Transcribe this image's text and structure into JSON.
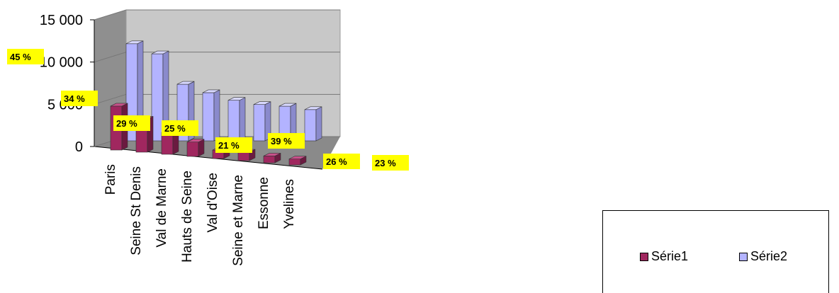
{
  "chart_data": {
    "type": "bar",
    "categories": [
      "Paris",
      "Seine St Denis",
      "Val de Marne",
      "Hauts de Seine",
      "Val d'Oise",
      "Seine et Marne",
      "Essonne",
      "Yvelines"
    ],
    "series": [
      {
        "name": "Série1",
        "values": [
          5200,
          3900,
          2600,
          1700,
          1000,
          1000,
          800,
          700
        ],
        "color": "#a0275f"
      },
      {
        "name": "Série2",
        "values": [
          11500,
          10300,
          6700,
          5700,
          4800,
          4300,
          4100,
          3700
        ],
        "color": "#b3b3ff"
      }
    ],
    "ylim": [
      0,
      15000
    ],
    "yticks": [
      {
        "value": 0,
        "label": "0"
      },
      {
        "value": 5000,
        "label": "5 000"
      },
      {
        "value": 10000,
        "label": "10 000"
      },
      {
        "value": 15000,
        "label": "15 000"
      }
    ],
    "data_labels": [
      "45 %",
      "34 %",
      "29 %",
      "25 %",
      "21 %",
      "39 %",
      "26 %",
      "23 %"
    ],
    "label_color": "#ffff00",
    "legend_position": "bottom-right",
    "grid": true,
    "three_d": true
  }
}
